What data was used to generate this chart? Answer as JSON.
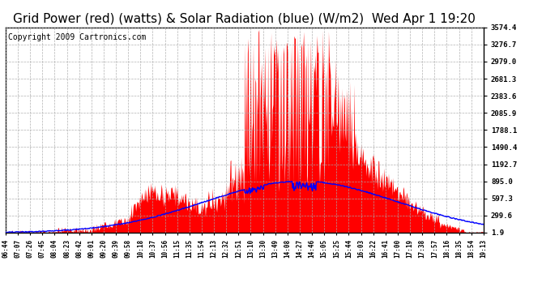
{
  "title": "Grid Power (red) (watts) & Solar Radiation (blue) (W/m2)  Wed Apr 1 19:20",
  "copyright_text": "Copyright 2009 Cartronics.com",
  "y_ticks": [
    1.9,
    299.6,
    597.3,
    895.0,
    1192.7,
    1490.4,
    1788.1,
    2085.9,
    2383.6,
    2681.3,
    2979.0,
    3276.7,
    3574.4
  ],
  "x_labels": [
    "06:44",
    "07:07",
    "07:26",
    "07:45",
    "08:04",
    "08:23",
    "08:42",
    "09:01",
    "09:20",
    "09:39",
    "09:58",
    "10:18",
    "10:37",
    "10:56",
    "11:15",
    "11:35",
    "11:54",
    "12:13",
    "12:32",
    "12:51",
    "13:10",
    "13:30",
    "13:49",
    "14:08",
    "14:27",
    "14:46",
    "15:05",
    "15:25",
    "15:44",
    "16:03",
    "16:22",
    "16:41",
    "17:00",
    "17:19",
    "17:38",
    "17:57",
    "18:16",
    "18:35",
    "18:54",
    "19:13"
  ],
  "y_min": 1.9,
  "y_max": 3574.4,
  "bg_color": "#ffffff",
  "plot_bg_color": "#ffffff",
  "grid_color": "#aaaaaa",
  "red_color": "#ff0000",
  "blue_color": "#0000ff",
  "title_fontsize": 11,
  "copyright_fontsize": 7,
  "figwidth": 6.9,
  "figheight": 3.75,
  "dpi": 100
}
